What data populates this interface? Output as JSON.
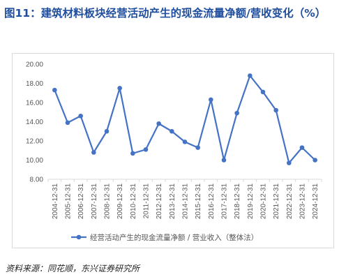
{
  "title": "图11：建筑材料板块经营活动产生的现金流量净额/营收变化（%）",
  "source": "资料来源：同花顺，东兴证券研究所",
  "colors": {
    "title": "#1f4e9e",
    "series": "#4472c4",
    "axis": "#d9d9d9"
  },
  "chart_data": {
    "type": "line",
    "x": [
      "2004-12-31",
      "2005-12-31",
      "2006-12-31",
      "2007-12-31",
      "2008-12-31",
      "2009-12-31",
      "2010-12-31",
      "2011-12-31",
      "2012-12-31",
      "2013-12-31",
      "2014-12-31",
      "2015-12-31",
      "2016-12-31",
      "2017-12-31",
      "2018-12-31",
      "2019-12-31",
      "2020-12-31",
      "2021-12-31",
      "2022-12-31",
      "2023-12-31",
      "2024-12-31"
    ],
    "y_ticks": [
      "20.00",
      "18.00",
      "16.00",
      "14.00",
      "12.00",
      "10.00",
      "8.00"
    ],
    "ylim": [
      8,
      20
    ],
    "grid": false,
    "legend_position": "bottom",
    "series": [
      {
        "name": "经营活动产生的现金流量净额 / 营业收入（整体法）",
        "values": [
          17.3,
          13.9,
          14.6,
          10.8,
          13.0,
          17.5,
          10.7,
          11.1,
          13.8,
          13.0,
          11.9,
          11.3,
          16.3,
          10.0,
          14.9,
          18.8,
          17.1,
          15.2,
          9.7,
          11.3,
          10.0
        ]
      }
    ]
  }
}
